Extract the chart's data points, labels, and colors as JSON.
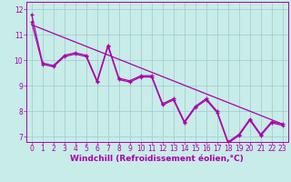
{
  "xlabel": "Windchill (Refroidissement éolien,°C)",
  "bg_color": "#c8ece8",
  "line_color": "#aa00aa",
  "grid_color": "#99cccc",
  "xlim": [
    -0.5,
    23.5
  ],
  "ylim": [
    6.8,
    12.3
  ],
  "xticks": [
    0,
    1,
    2,
    3,
    4,
    5,
    6,
    7,
    8,
    9,
    10,
    11,
    12,
    13,
    14,
    15,
    16,
    17,
    18,
    19,
    20,
    21,
    22,
    23
  ],
  "yticks": [
    7,
    8,
    9,
    10,
    11,
    12
  ],
  "series1": [
    11.8,
    9.9,
    9.8,
    10.2,
    10.3,
    10.2,
    9.2,
    10.6,
    9.3,
    9.2,
    9.4,
    9.4,
    8.3,
    8.5,
    7.6,
    8.2,
    8.5,
    8.0,
    6.8,
    7.1,
    7.7,
    7.1,
    7.6,
    7.5
  ],
  "series2": [
    11.5,
    9.85,
    9.75,
    10.15,
    10.25,
    10.15,
    9.15,
    10.55,
    9.25,
    9.15,
    9.35,
    9.35,
    8.25,
    8.45,
    7.55,
    8.15,
    8.45,
    7.95,
    6.75,
    7.05,
    7.65,
    7.05,
    7.55,
    7.45
  ],
  "trend_y_start": 11.4,
  "trend_y_end": 7.5,
  "xlabel_fontsize": 6.5,
  "tick_fontsize": 5.5
}
